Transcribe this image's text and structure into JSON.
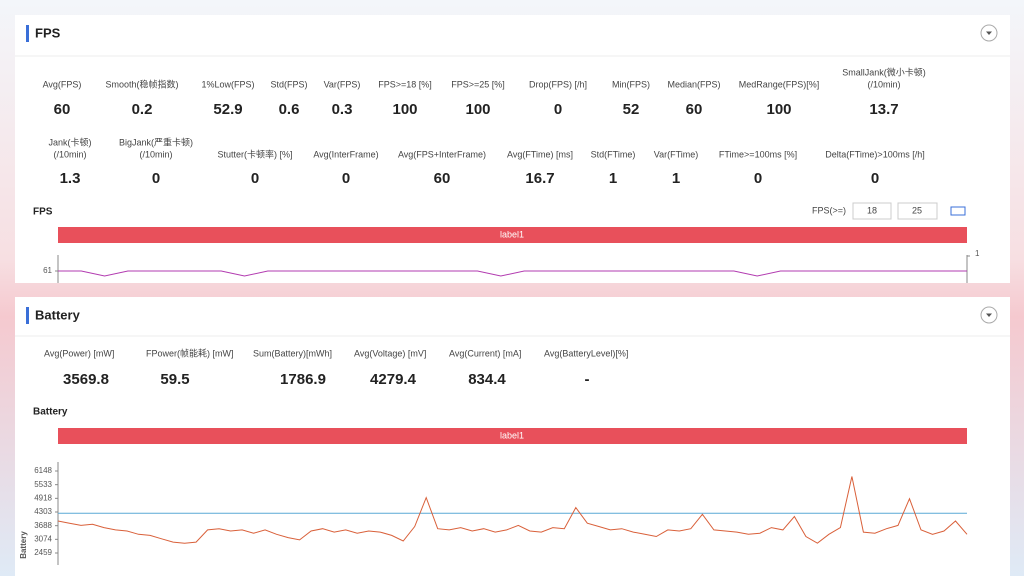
{
  "fps": {
    "title": "FPS",
    "metrics": [
      {
        "label": "Avg(FPS)",
        "value": 60
      },
      {
        "label": "Smooth(稳帧指数)",
        "value": 0.2
      },
      {
        "label": "1%Low(FPS)",
        "value": 52.9
      },
      {
        "label": "Std(FPS)",
        "value": 0.6
      },
      {
        "label": "Var(FPS)",
        "value": 0.3
      },
      {
        "label": "FPS>=18 [%]",
        "value": 100
      },
      {
        "label": "FPS>=25 [%]",
        "value": 100
      },
      {
        "label": "Drop(FPS) [/h]",
        "value": 0
      },
      {
        "label": "Min(FPS)",
        "value": 52
      },
      {
        "label": "Median(FPS)",
        "value": 60
      },
      {
        "label": "MedRange(FPS)[%]",
        "value": 100
      },
      {
        "label": [
          "SmallJank(微小卡顿)",
          "(/10min)"
        ],
        "value": 13.7
      },
      {
        "label": [
          "Jank(卡顿)",
          "(/10min)"
        ],
        "value": 1.3
      },
      {
        "label": [
          "BigJank(严重卡顿)",
          "(/10min)"
        ],
        "value": 0
      },
      {
        "label": "Stutter(卡顿率) [%]",
        "value": 0
      },
      {
        "label": "Avg(InterFrame)",
        "value": 0
      },
      {
        "label": "Avg(FPS+InterFrame)",
        "value": 60
      },
      {
        "label": "Avg(FTime) [ms]",
        "value": 16.7
      },
      {
        "label": "Std(FTime)",
        "value": 1
      },
      {
        "label": "Var(FTime)",
        "value": 1
      },
      {
        "label": "FTime>=100ms [%]",
        "value": 0
      },
      {
        "label": "Delta(FTime)>100ms [/h]",
        "value": 0
      }
    ],
    "chart": {
      "type": "line",
      "title": "FPS",
      "filter_label": "FPS(>=)",
      "filter_values": [
        18,
        25
      ],
      "band_label": "label1",
      "color": "#b23bb0",
      "ylim": [
        58,
        64
      ],
      "yticks": [
        61
      ],
      "y2ticks": [
        1
      ],
      "values": [
        61,
        61,
        60,
        61,
        61,
        61,
        61,
        61,
        60,
        61,
        61,
        61,
        61,
        61,
        61,
        61,
        61,
        61,
        61,
        60,
        61,
        61,
        61,
        61,
        61,
        61,
        61,
        61,
        61,
        61,
        60,
        61,
        61,
        61,
        61,
        61,
        61,
        61,
        61,
        61
      ]
    }
  },
  "battery": {
    "title": "Battery",
    "metrics": [
      {
        "label": "Avg(Power) [mW]",
        "value": 3569.8
      },
      {
        "label": "FPower(帧能耗) [mW]",
        "value": 59.5
      },
      {
        "label": "Sum(Battery)[mWh]",
        "value": 1786.9
      },
      {
        "label": "Avg(Voltage) [mV]",
        "value": 4279.4
      },
      {
        "label": "Avg(Current) [mA]",
        "value": 834.4
      },
      {
        "label": "Avg(BatteryLevel)[%]",
        "value": "-"
      }
    ],
    "chart": {
      "type": "line",
      "title": "Battery",
      "band_label": "label1",
      "ylabel": "Battery",
      "color": "#d9603a",
      "reference_line": 4250,
      "reference_color": "#5aa9d6",
      "ylim": [
        2459,
        6148
      ],
      "yticks": [
        6148,
        5533,
        4918,
        4303,
        3688,
        3074,
        2459
      ],
      "values": [
        3900,
        3800,
        3700,
        3750,
        3600,
        3500,
        3450,
        3300,
        3250,
        3100,
        2950,
        2900,
        2950,
        3500,
        3550,
        3450,
        3500,
        3350,
        3500,
        3300,
        3150,
        3050,
        3450,
        3550,
        3400,
        3500,
        3350,
        3450,
        3400,
        3250,
        3000,
        3650,
        4950,
        3550,
        3500,
        3600,
        3450,
        3550,
        3400,
        3500,
        3700,
        3450,
        3400,
        3600,
        3550,
        4500,
        3800,
        3650,
        3500,
        3550,
        3400,
        3300,
        3200,
        3500,
        3450,
        3550,
        4200,
        3500,
        3450,
        3400,
        3300,
        3350,
        3600,
        3500,
        4100,
        3200,
        2900,
        3300,
        3600,
        5900,
        3400,
        3350,
        3550,
        3700,
        4900,
        3500,
        3300,
        3450,
        3900,
        3300
      ]
    }
  }
}
